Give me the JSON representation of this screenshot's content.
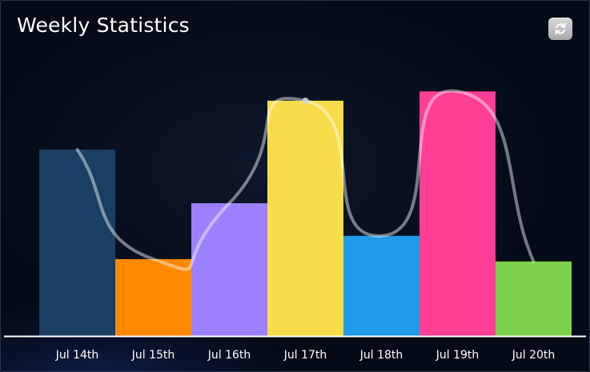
{
  "widget": {
    "title": "Weekly Statistics",
    "refresh_icon": "refresh-icon"
  },
  "chart_data": {
    "type": "bar",
    "categories": [
      "Jul 14th",
      "Jul 15th",
      "Jul 16th",
      "Jul 17th",
      "Jul 18th",
      "Jul 19th",
      "Jul 20th"
    ],
    "values": [
      80,
      33,
      57,
      101,
      43,
      105,
      32
    ],
    "colors": [
      "#1a3f62",
      "#ff8800",
      "#9c80ff",
      "#f9dc4a",
      "#209be8",
      "#ff3e96",
      "#7ed24b"
    ],
    "ylim": [
      0,
      125
    ],
    "overlay_line": {
      "color": "#ffffff",
      "smooth": true
    },
    "title": "",
    "xlabel": "",
    "ylabel": "",
    "grid": false,
    "legend": false
  }
}
